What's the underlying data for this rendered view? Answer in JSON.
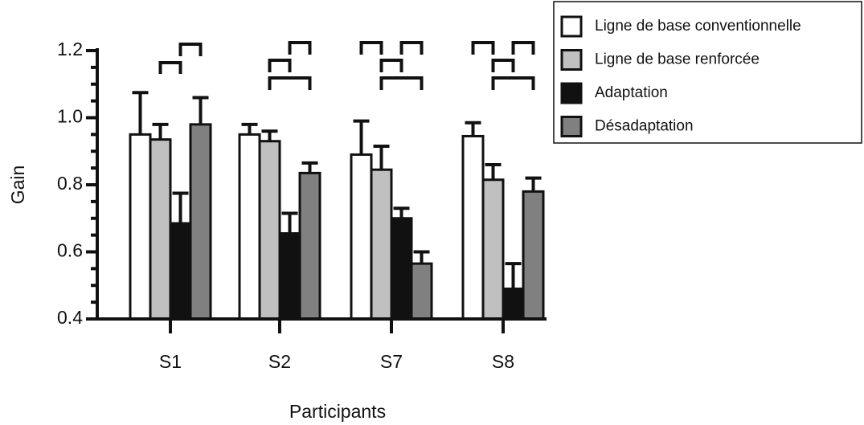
{
  "chart_data": {
    "type": "bar",
    "x_label": "Participants",
    "y_label": "Gain",
    "categories": [
      "S1",
      "S2",
      "S7",
      "S8"
    ],
    "series": [
      {
        "name": "Ligne de base conventionnelle",
        "color": "#ffffff",
        "values": [
          0.95,
          0.95,
          0.89,
          0.945
        ],
        "errors": [
          0.125,
          0.03,
          0.1,
          0.04
        ]
      },
      {
        "name": "Ligne de base renforcée",
        "color": "#c0c0c0",
        "values": [
          0.935,
          0.93,
          0.845,
          0.815
        ],
        "errors": [
          0.045,
          0.03,
          0.07,
          0.045
        ]
      },
      {
        "name": "Adaptation",
        "color": "#111111",
        "values": [
          0.685,
          0.655,
          0.7,
          0.49
        ],
        "errors": [
          0.09,
          0.06,
          0.03,
          0.075
        ]
      },
      {
        "name": "Désadaptation",
        "color": "#808080",
        "values": [
          0.98,
          0.835,
          0.565,
          0.78
        ],
        "errors": [
          0.08,
          0.03,
          0.035,
          0.04
        ]
      }
    ],
    "ylim": [
      0.4,
      1.2
    ],
    "yticks": [
      0.4,
      0.6,
      0.8,
      {
        "value": 1.0,
        "label": "1.0"
      },
      1.2
    ],
    "minor_yticks": [
      0.45,
      0.5,
      0.55,
      0.65,
      0.7,
      0.75,
      0.85,
      0.9,
      0.95,
      1.05,
      1.1,
      1.15
    ],
    "legend": "top-right"
  }
}
